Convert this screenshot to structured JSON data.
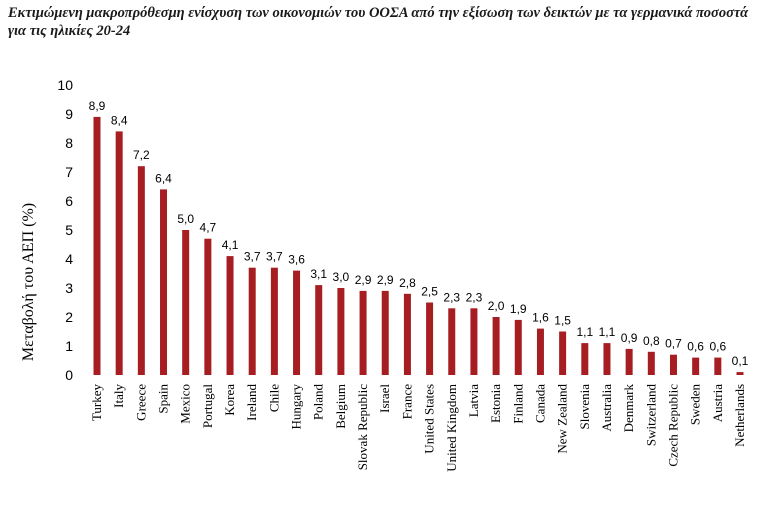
{
  "chart_data": {
    "type": "bar",
    "title": "Εκτιμώμενη μακροπρόθεσμη ενίσχυση των οικονομιών του ΟΟΣΑ από την εξίσωση των δεικτών με τα γερμανικά ποσοστά για τις ηλικίες 20-24",
    "xlabel": "",
    "ylabel": "Μεταβολή του ΑΕΠ (%)",
    "ylim": [
      0,
      10
    ],
    "yticks": [
      0,
      1,
      2,
      3,
      4,
      5,
      6,
      7,
      8,
      9,
      10
    ],
    "grid": false,
    "bar_color": "#a61e22",
    "categories": [
      "Turkey",
      "Italy",
      "Greece",
      "Spain",
      "Mexico",
      "Portugal",
      "Korea",
      "Ireland",
      "Chile",
      "Hungary",
      "Poland",
      "Belgium",
      "Slovak Republic",
      "Israel",
      "France",
      "United States",
      "United Kingdom",
      "Latvia",
      "Estonia",
      "Finland",
      "Canada",
      "New Zealand",
      "Slovenia",
      "Australia",
      "Denmark",
      "Switzerland",
      "Czech Republic",
      "Sweden",
      "Austria",
      "Netherlands"
    ],
    "values": [
      8.9,
      8.4,
      7.2,
      6.4,
      5.0,
      4.7,
      4.1,
      3.7,
      3.7,
      3.6,
      3.1,
      3.0,
      2.9,
      2.9,
      2.8,
      2.5,
      2.3,
      2.3,
      2.0,
      1.9,
      1.6,
      1.5,
      1.1,
      1.1,
      0.9,
      0.8,
      0.7,
      0.6,
      0.6,
      0.1
    ],
    "data_labels": [
      "8,9",
      "8,4",
      "7,2",
      "6,4",
      "5,0",
      "4,7",
      "4,1",
      "3,7",
      "3,7",
      "3,6",
      "3,1",
      "3,0",
      "2,9",
      "2,9",
      "2,8",
      "2,5",
      "2,3",
      "2,3",
      "2,0",
      "1,9",
      "1,6",
      "1,5",
      "1,1",
      "1,1",
      "0,9",
      "0,8",
      "0,7",
      "0,6",
      "0,6",
      "0,1"
    ]
  }
}
